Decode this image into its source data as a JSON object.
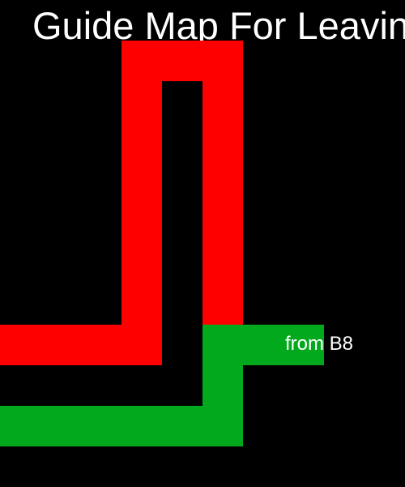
{
  "map": {
    "title": "Guide Map For Leaving",
    "colors": {
      "background": "#000000",
      "red_route": "#ff0000",
      "green_route": "#03a91d",
      "text": "#ffffff"
    },
    "routes": [
      {
        "name": "red-route",
        "color": "#ff0000"
      },
      {
        "name": "green-route",
        "color": "#03a91d",
        "label": "from B8"
      }
    ]
  }
}
